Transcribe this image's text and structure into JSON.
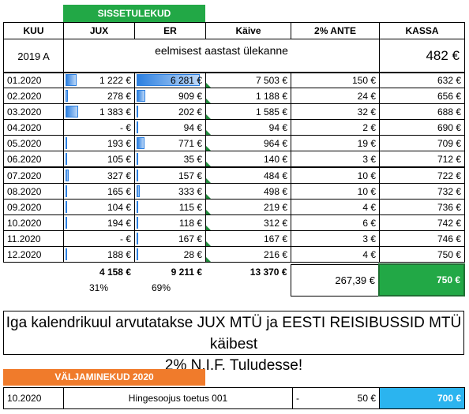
{
  "sheet": {
    "income_title": "SISSETULEKUD",
    "expense_title": "VÄLJAMINEKUD 2020",
    "columns": [
      "KUU",
      "JUX",
      "ER",
      "Käive",
      "2% ANTE",
      "KASSA"
    ],
    "carryover": {
      "kuu": "2019 A",
      "label": "eelmisest aastast ülekanne",
      "kassa": "482 €"
    },
    "rows": [
      {
        "kuu": "01.2020",
        "jux": "1 222 €",
        "er": "6 281 €",
        "kaive": "7 503 €",
        "ante": "150 €",
        "kassa": "632 €",
        "jux_share": 0.17,
        "er_share": 1.0
      },
      {
        "kuu": "02.2020",
        "jux": "278 €",
        "er": "909 €",
        "kaive": "1 188 €",
        "ante": "24 €",
        "kassa": "656 €",
        "jux_share": 0.04,
        "er_share": 0.14
      },
      {
        "kuu": "03.2020",
        "jux": "1 383 €",
        "er": "202 €",
        "kaive": "1 585 €",
        "ante": "32 €",
        "kassa": "688 €",
        "jux_share": 0.2,
        "er_share": 0.03
      },
      {
        "kuu": "04.2020",
        "jux": "-      €",
        "er": "94 €",
        "kaive": "94 €",
        "ante": "2 €",
        "kassa": "690 €",
        "jux_share": 0,
        "er_share": 0.015
      },
      {
        "kuu": "05.2020",
        "jux": "193 €",
        "er": "771 €",
        "kaive": "964 €",
        "ante": "19 €",
        "kassa": "709 €",
        "jux_share": 0.03,
        "er_share": 0.12
      },
      {
        "kuu": "06.2020",
        "jux": "105 €",
        "er": "35 €",
        "kaive": "140 €",
        "ante": "3 €",
        "kassa": "712 €",
        "jux_share": 0.02,
        "er_share": 0.005
      },
      {
        "kuu": "07.2020",
        "jux": "327 €",
        "er": "157 €",
        "kaive": "484 €",
        "ante": "10 €",
        "kassa": "722 €",
        "jux_share": 0.05,
        "er_share": 0.025
      },
      {
        "kuu": "08.2020",
        "jux": "165 €",
        "er": "333 €",
        "kaive": "498 €",
        "ante": "10 €",
        "kassa": "732 €",
        "jux_share": 0.025,
        "er_share": 0.05
      },
      {
        "kuu": "09.2020",
        "jux": "104 €",
        "er": "115 €",
        "kaive": "219 €",
        "ante": "4 €",
        "kassa": "736 €",
        "jux_share": 0.015,
        "er_share": 0.018
      },
      {
        "kuu": "10.2020",
        "jux": "194 €",
        "er": "118 €",
        "kaive": "312 €",
        "ante": "6 €",
        "kassa": "742 €",
        "jux_share": 0.03,
        "er_share": 0.018
      },
      {
        "kuu": "11.2020",
        "jux": "-      €",
        "er": "167 €",
        "kaive": "167 €",
        "ante": "3 €",
        "kassa": "746 €",
        "jux_share": 0,
        "er_share": 0.026
      },
      {
        "kuu": "12.2020",
        "jux": "188 €",
        "er": "28 €",
        "kaive": "216 €",
        "ante": "4 €",
        "kassa": "750 €",
        "jux_share": 0.03,
        "er_share": 0.004
      }
    ],
    "totals": {
      "jux": "4 158 €",
      "er": "9 211 €",
      "kaive": "13 370 €",
      "ante": "267,39 €",
      "kassa": "750 €"
    },
    "percent": {
      "jux": "31%",
      "er": "69%"
    },
    "note_line1": "Iga kalendrikuul arvutatakse JUX MTÜ ja EESTI REISIBUSSID MTÜ käibest",
    "note_line2": "2% N.I.F. Tuludesse!",
    "expense": {
      "kuu": "10.2020",
      "label": "Hingesoojus toetus 001",
      "dash": "-",
      "amount": "50 €",
      "kassa": "700 €"
    },
    "colors": {
      "income_header": "#22a846",
      "expense_header": "#f07b2b",
      "kassa_total": "#22a846",
      "kassa_after": "#2bb4ef",
      "databar": "#2b7fe0"
    }
  }
}
